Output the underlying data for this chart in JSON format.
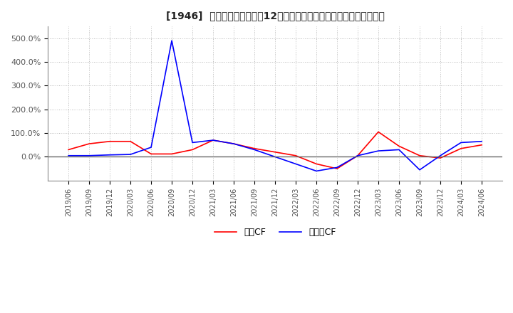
{
  "title": "[1946]  キャッシュフローの12か月移動合計の対前年同期増減率の推移",
  "legend_labels": [
    "営業CF",
    "フリーCF"
  ],
  "line_colors": [
    "#ff0000",
    "#0000ff"
  ],
  "background_color": "#ffffff",
  "grid_color": "#aaaaaa",
  "x_labels": [
    "2019/06",
    "2019/09",
    "2019/12",
    "2020/03",
    "2020/06",
    "2020/09",
    "2020/12",
    "2021/03",
    "2021/06",
    "2021/09",
    "2021/12",
    "2022/03",
    "2022/06",
    "2022/09",
    "2022/12",
    "2023/03",
    "2023/06",
    "2023/09",
    "2023/12",
    "2024/03",
    "2024/06"
  ],
  "operating_cf": [
    30,
    55,
    65,
    65,
    12,
    12,
    30,
    70,
    55,
    35,
    20,
    5,
    -30,
    -50,
    5,
    105,
    45,
    5,
    -5,
    35,
    50
  ],
  "free_cf": [
    5,
    5,
    8,
    10,
    40,
    490,
    60,
    70,
    55,
    30,
    0,
    -30,
    -60,
    -45,
    5,
    25,
    30,
    -55,
    5,
    60,
    65
  ],
  "ylim_min": -100,
  "ylim_max": 550,
  "yticks": [
    0,
    100,
    200,
    300,
    400,
    500
  ]
}
